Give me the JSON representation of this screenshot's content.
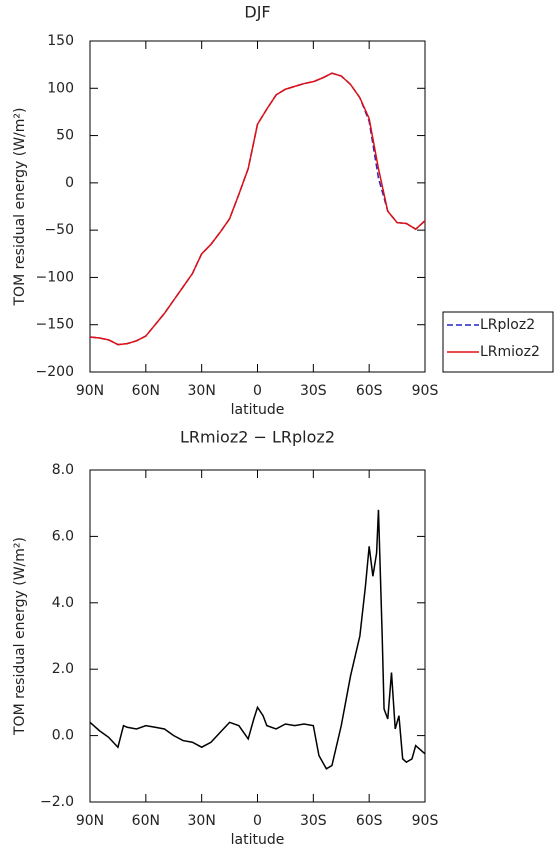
{
  "chart_data": [
    {
      "type": "line",
      "title": "DJF",
      "xlabel": "latitude",
      "ylabel": "TOM residual energy (W/m²)",
      "x": [
        90,
        85,
        80,
        75,
        70,
        65,
        60,
        55,
        50,
        45,
        40,
        35,
        30,
        25,
        20,
        15,
        10,
        5,
        0,
        -5,
        -10,
        -15,
        -20,
        -25,
        -30,
        -35,
        -40,
        -45,
        -50,
        -55,
        -60,
        -65,
        -70,
        -75,
        -80,
        -85,
        -90
      ],
      "series": [
        {
          "name": "LRploz2",
          "color": "#2323c8",
          "line_style": "dashed",
          "values": [
            -163,
            -164,
            -166,
            -171,
            -170,
            -167,
            -162,
            -150,
            -138,
            -124,
            -110,
            -96,
            -75,
            -65,
            -52,
            -38,
            -12,
            15,
            62,
            78,
            93,
            99,
            102,
            105,
            107,
            111,
            116,
            113,
            104,
            90,
            65,
            5,
            -30,
            -42,
            -43,
            -49,
            -40
          ]
        },
        {
          "name": "LRmioz2",
          "color": "#e01010",
          "line_style": "solid",
          "values": [
            -163,
            -164,
            -166,
            -171,
            -170,
            -167,
            -162,
            -150,
            -138,
            -124,
            -110,
            -96,
            -75,
            -65,
            -52,
            -38,
            -12,
            15,
            62,
            78,
            93,
            99,
            102,
            105,
            107,
            111,
            116,
            113,
            104,
            90,
            68,
            15,
            -30,
            -42,
            -43,
            -49,
            -40
          ]
        }
      ],
      "xlim": [
        90,
        -90
      ],
      "xticks": [
        {
          "value": 90,
          "label": "90N"
        },
        {
          "value": 60,
          "label": "60N"
        },
        {
          "value": 30,
          "label": "30N"
        },
        0,
        {
          "value": -30,
          "label": "30S"
        },
        {
          "value": -60,
          "label": "60S"
        },
        {
          "value": -90,
          "label": "90S"
        }
      ],
      "ylim": [
        -200,
        150
      ],
      "yticks": [
        {
          "value": -200,
          "label": "−200"
        },
        {
          "value": -150,
          "label": "−150"
        },
        {
          "value": -100,
          "label": "−100"
        },
        {
          "value": -50,
          "label": "−50"
        },
        0,
        50,
        100,
        150
      ],
      "grid": false,
      "legend": "right"
    },
    {
      "type": "line",
      "title": "LRmioz2 − LRploz2",
      "xlabel": "latitude",
      "ylabel": "TOM residual energy (W/m²)",
      "x": [
        90,
        85,
        80,
        75,
        72,
        70,
        65,
        60,
        55,
        50,
        45,
        40,
        35,
        30,
        25,
        20,
        15,
        10,
        5,
        2,
        0,
        -3,
        -5,
        -10,
        -15,
        -20,
        -25,
        -30,
        -33,
        -37,
        -40,
        -45,
        -50,
        -55,
        -58,
        -60,
        -62,
        -64,
        -65,
        -67,
        -68,
        -70,
        -72,
        -74,
        -76,
        -78,
        -80,
        -83,
        -85,
        -87,
        -90
      ],
      "values": [
        0.4,
        0.15,
        -0.05,
        -0.35,
        0.3,
        0.25,
        0.2,
        0.3,
        0.25,
        0.2,
        0.0,
        -0.15,
        -0.2,
        -0.35,
        -0.2,
        0.1,
        0.4,
        0.3,
        -0.1,
        0.5,
        0.85,
        0.6,
        0.3,
        0.2,
        0.35,
        0.3,
        0.35,
        0.3,
        -0.6,
        -1.0,
        -0.9,
        0.3,
        1.8,
        3.0,
        4.5,
        5.7,
        4.8,
        5.5,
        6.8,
        3.0,
        0.8,
        0.5,
        1.9,
        0.2,
        0.6,
        -0.7,
        -0.8,
        -0.7,
        -0.3,
        -0.4,
        -0.55
      ],
      "color": "#000000",
      "xlim": [
        90,
        -90
      ],
      "xticks": [
        {
          "value": 90,
          "label": "90N"
        },
        {
          "value": 60,
          "label": "60N"
        },
        {
          "value": 30,
          "label": "30N"
        },
        0,
        {
          "value": -30,
          "label": "30S"
        },
        {
          "value": -60,
          "label": "60S"
        },
        {
          "value": -90,
          "label": "90S"
        }
      ],
      "ylim": [
        -2,
        8
      ],
      "yticks": [
        {
          "value": -2,
          "label": "−2.0"
        },
        {
          "value": 0,
          "label": "0.0"
        },
        {
          "value": 2,
          "label": "2.0"
        },
        {
          "value": 4,
          "label": "4.0"
        },
        {
          "value": 6,
          "label": "6.0"
        },
        {
          "value": 8,
          "label": "8.0"
        }
      ],
      "grid": false
    }
  ]
}
